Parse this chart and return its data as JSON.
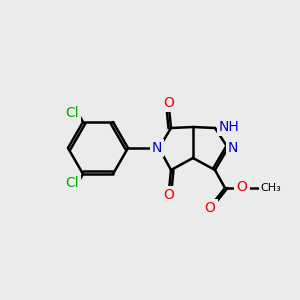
{
  "bg_color": "#ebebeb",
  "bond_color": "#000000",
  "bond_width": 1.8,
  "atom_colors": {
    "C": "#000000",
    "N": "#0000cc",
    "O": "#ee0000",
    "Cl": "#00aa00",
    "H": "#888888"
  },
  "font_size_atom": 10,
  "font_size_small": 8
}
